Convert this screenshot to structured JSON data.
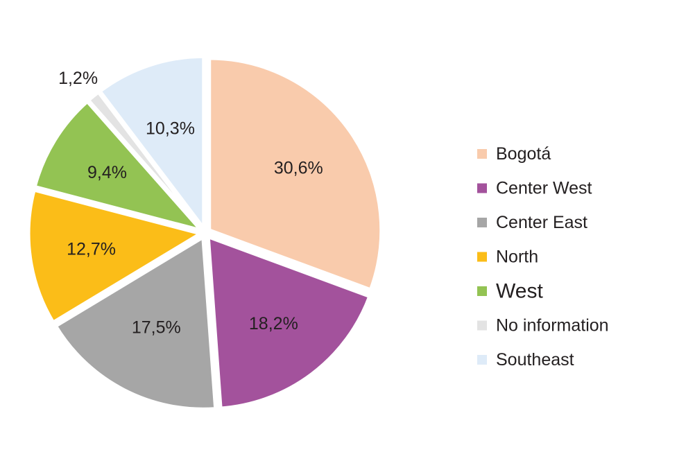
{
  "chart_data": {
    "type": "pie",
    "title": "",
    "start_angle_deg": 0,
    "direction": "clockwise",
    "slices": [
      {
        "name": "Bogotá",
        "value": 30.6,
        "label": "30,6%",
        "color": "#f9cbac"
      },
      {
        "name": "Center West",
        "value": 18.2,
        "label": "18,2%",
        "color": "#a3529c"
      },
      {
        "name": "Center East",
        "value": 17.5,
        "label": "17,5%",
        "color": "#a6a6a6"
      },
      {
        "name": "North",
        "value": 12.7,
        "label": "12,7%",
        "color": "#fbbd18"
      },
      {
        "name": "West",
        "value": 9.4,
        "label": "9,4%",
        "color": "#93c353"
      },
      {
        "name": "No information",
        "value": 1.2,
        "label": "1,2%",
        "color": "#e3e3e3"
      },
      {
        "name": "Southeast",
        "value": 10.3,
        "label": "10,3%",
        "color": "#deebf8"
      }
    ],
    "legend": {
      "placement": "right",
      "entries": [
        "Bogotá",
        "Center West",
        "Center East",
        "North",
        "West",
        "No information",
        "Southeast"
      ]
    }
  }
}
